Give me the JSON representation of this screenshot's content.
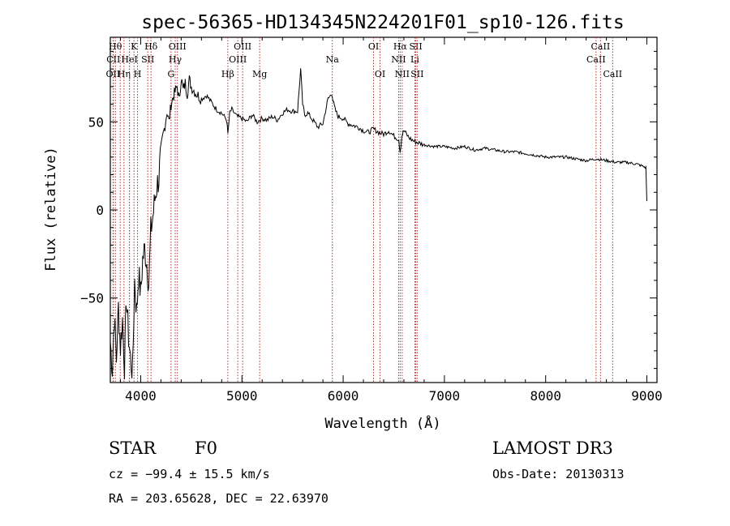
{
  "chart_data": {
    "type": "line",
    "title": "spec-56365-HD134345N224201F01_sp10-126.fits",
    "xlabel": "Wavelength (Å)",
    "ylabel": "Flux (relative)",
    "xlim": [
      3700,
      9100
    ],
    "ylim": [
      -98,
      98
    ],
    "xticks": [
      4000,
      5000,
      6000,
      7000,
      8000,
      9000
    ],
    "yticks": [
      -50,
      0,
      50
    ],
    "grid": false,
    "series": [
      {
        "x": [
          3700,
          3720,
          3740,
          3760,
          3780,
          3800,
          3820,
          3840,
          3860,
          3880,
          3900,
          3920,
          3940,
          3960,
          3980,
          4000,
          4020,
          4040,
          4060,
          4080,
          4100,
          4120,
          4140,
          4160,
          4180,
          4200,
          4220,
          4240,
          4260,
          4280,
          4300,
          4320,
          4340,
          4360,
          4380,
          4400,
          4420,
          4440,
          4460,
          4480,
          4500,
          4550,
          4600,
          4650,
          4700,
          4750,
          4800,
          4850,
          4861,
          4880,
          4900,
          4950,
          5000,
          5050,
          5100,
          5150,
          5200,
          5250,
          5300,
          5350,
          5400,
          5450,
          5500,
          5550,
          5580,
          5600,
          5620,
          5650,
          5700,
          5750,
          5800,
          5850,
          5890,
          5900,
          5920,
          5950,
          6000,
          6050,
          6100,
          6150,
          6200,
          6250,
          6300,
          6350,
          6400,
          6450,
          6500,
          6550,
          6563,
          6580,
          6600,
          6650,
          6700,
          6750,
          6800,
          6900,
          7000,
          7100,
          7200,
          7300,
          7400,
          7500,
          7600,
          7700,
          7800,
          7900,
          8000,
          8100,
          8200,
          8300,
          8400,
          8500,
          8600,
          8700,
          8800,
          8900,
          8950,
          8990,
          9000
        ],
        "y": [
          -75,
          -90,
          -60,
          -85,
          -55,
          -78,
          -62,
          -88,
          -50,
          -72,
          -85,
          -92,
          -40,
          -58,
          -36,
          -48,
          -28,
          -22,
          -30,
          -42,
          -12,
          -4,
          6,
          14,
          18,
          34,
          42,
          48,
          56,
          50,
          60,
          64,
          67,
          70,
          62,
          75,
          68,
          72,
          66,
          74,
          70,
          66,
          63,
          65,
          61,
          57,
          55,
          51,
          43,
          55,
          57,
          53,
          52,
          50,
          54,
          50,
          52,
          51,
          53,
          51,
          55,
          57,
          56,
          56,
          80,
          60,
          54,
          55,
          51,
          47,
          49,
          63,
          66,
          62,
          57,
          53,
          52,
          49,
          48,
          47,
          45,
          44,
          46,
          44,
          43,
          45,
          42,
          40,
          33,
          42,
          45,
          41,
          39,
          38,
          37,
          36,
          36,
          35,
          36,
          34,
          35,
          34,
          33,
          33,
          32,
          31,
          30,
          30,
          30,
          29,
          28,
          29,
          28,
          27,
          27,
          26,
          25,
          24,
          5
        ]
      }
    ],
    "line_markers": [
      {
        "w": 3750,
        "label": "Hθ",
        "row": 1
      },
      {
        "w": 3730,
        "label": "CII",
        "row": 2
      },
      {
        "w": 3727,
        "label": "OII",
        "row": 3
      },
      {
        "w": 3798,
        "label": "",
        "row": 0
      },
      {
        "w": 3835,
        "label": "Hη",
        "row": 3
      },
      {
        "w": 3889,
        "label": "",
        "row": 0
      },
      {
        "w": 3934,
        "label": "K",
        "row": 1
      },
      {
        "w": 3969,
        "label": "H",
        "row": 3
      },
      {
        "w": 3889,
        "label": "HeI",
        "row": 2
      },
      {
        "w": 4070,
        "label": "SII",
        "row": 2
      },
      {
        "w": 4102,
        "label": "Hδ",
        "row": 1
      },
      {
        "w": 4300,
        "label": "G",
        "row": 3
      },
      {
        "w": 4341,
        "label": "Hγ",
        "row": 2
      },
      {
        "w": 4363,
        "label": "OIII",
        "row": 1
      },
      {
        "w": 4861,
        "label": "Hβ",
        "row": 3
      },
      {
        "w": 4959,
        "label": "OIII",
        "row": 2
      },
      {
        "w": 5007,
        "label": "OIII",
        "row": 1
      },
      {
        "w": 5175,
        "label": "Mg",
        "row": 3
      },
      {
        "w": 5893,
        "label": "Na",
        "row": 2
      },
      {
        "w": 6300,
        "label": "OI",
        "row": 1
      },
      {
        "w": 6364,
        "label": "OI",
        "row": 3
      },
      {
        "w": 6548,
        "label": "NII",
        "row": 2
      },
      {
        "w": 6563,
        "label": "Hα",
        "row": 1
      },
      {
        "w": 6583,
        "label": "NII",
        "row": 3
      },
      {
        "w": 6708,
        "label": "Li",
        "row": 2
      },
      {
        "w": 6717,
        "label": "SII",
        "row": 1
      },
      {
        "w": 6731,
        "label": "SII",
        "row": 3
      },
      {
        "w": 8498,
        "label": "CaII",
        "row": 2
      },
      {
        "w": 8542,
        "label": "CaII",
        "row": 1
      },
      {
        "w": 8662,
        "label": "CaII",
        "row": 3
      }
    ]
  },
  "info": {
    "object_class": "STAR",
    "subclass": "F0",
    "survey": "LAMOST DR3",
    "cz": "cz = −99.4 ± 15.5 km/s",
    "obs_date": "Obs-Date: 20130313",
    "coords": "RA = 203.65628, DEC =  22.63970"
  },
  "colors": {
    "line_marker": "#b03030",
    "spectrum": "#000000"
  }
}
